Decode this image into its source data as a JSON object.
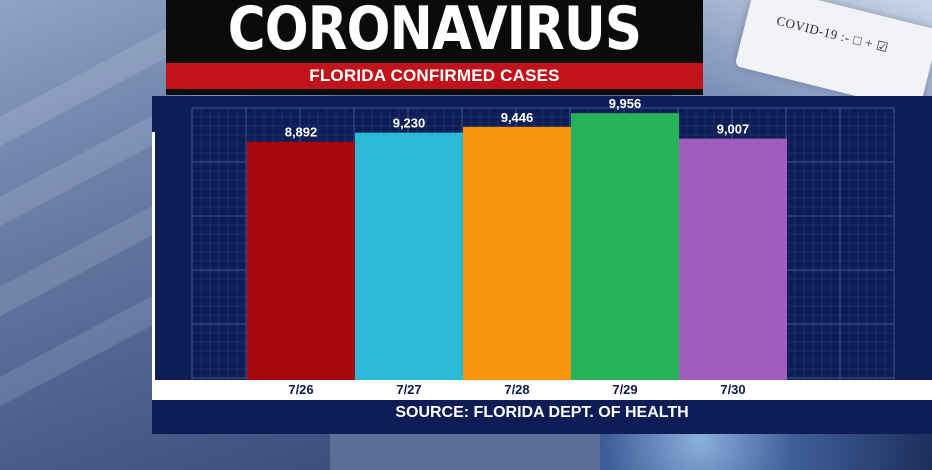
{
  "banner": {
    "headline": "CORONAVIRUS",
    "subheadline": "FLORIDA CONFIRMED CASES"
  },
  "background": {
    "test_card_text": "COVID-19 :- □ + ☑"
  },
  "colors": {
    "banner_bg": "#0b0b0b",
    "subhead_bar": "#c0131b",
    "panel_bg": "#0e1d55",
    "grid_line": "#3a4f8f",
    "axis_strip": "#ffffff"
  },
  "chart_data": {
    "type": "bar",
    "title": "FLORIDA CONFIRMED CASES",
    "categories": [
      "7/26",
      "7/27",
      "7/28",
      "7/29",
      "7/30"
    ],
    "values": [
      8892,
      9230,
      9446,
      9956,
      9007
    ],
    "value_labels": [
      "8,892",
      "9,230",
      "9,446",
      "9,956",
      "9,007"
    ],
    "bar_colors": [
      "#a8070f",
      "#2bbad8",
      "#f8930c",
      "#25b35a",
      "#a15dbe"
    ],
    "ylim": [
      0,
      10000
    ],
    "grid": true,
    "source": "SOURCE: FLORIDA DEPT. OF HEALTH"
  }
}
